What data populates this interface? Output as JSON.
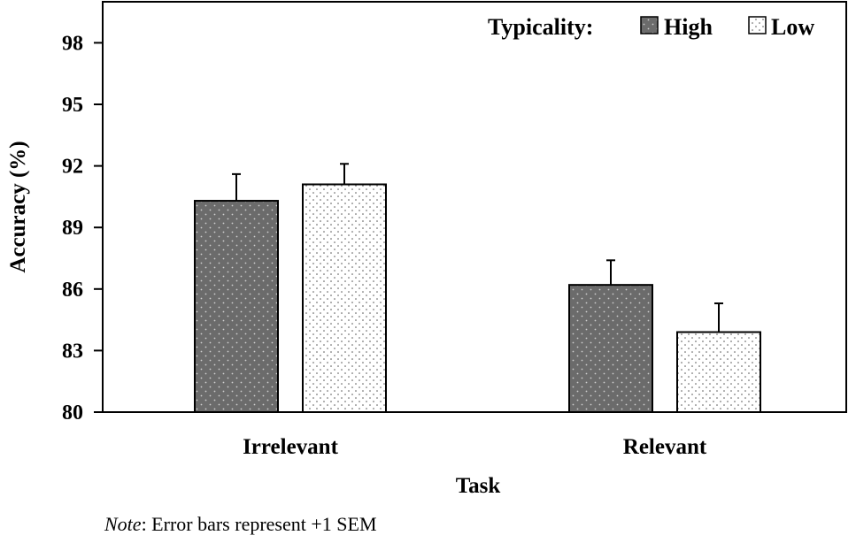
{
  "chart_data": {
    "type": "bar",
    "title": "",
    "xlabel": "Task",
    "ylabel": "Accuracy (%)",
    "categories": [
      "Irrelevant",
      "Relevant"
    ],
    "ylim": [
      80,
      100
    ],
    "yticks": [
      80,
      83,
      86,
      89,
      92,
      95,
      98
    ],
    "legend_title": "Typicality:",
    "legend_position": "top-right",
    "series": [
      {
        "name": "High",
        "values": [
          90.3,
          86.2
        ],
        "sem": [
          1.3,
          1.2
        ],
        "fill": "#6b6b6b",
        "dots": "#cfcfcf"
      },
      {
        "name": "Low",
        "values": [
          91.1,
          83.9
        ],
        "sem": [
          1.0,
          1.4
        ],
        "fill": "#ffffff",
        "dots": "#555555"
      }
    ],
    "error_bars": "+1 SEM",
    "grid": false
  },
  "note": {
    "prefix": "Note",
    "text": ": Error bars represent +1 SEM"
  }
}
